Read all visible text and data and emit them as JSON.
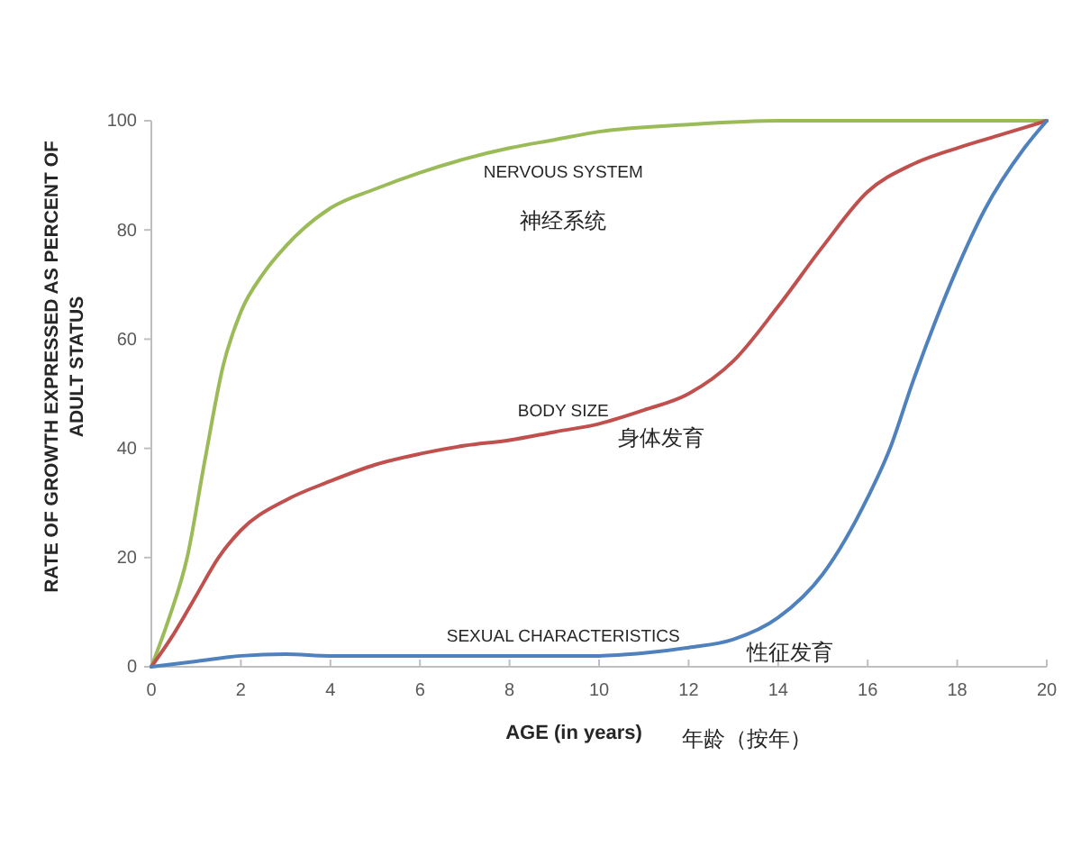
{
  "chart_data": {
    "type": "line",
    "xlabel": "AGE (in years)",
    "ylabel": "RATE OF GROWTH EXPRESSED AS PERCENT OF ADULT STATUS",
    "xlim": [
      0,
      20
    ],
    "xticks": [
      0,
      2,
      4,
      6,
      8,
      10,
      12,
      14,
      16,
      18,
      20
    ],
    "ylim": [
      0,
      100
    ],
    "yticks": [
      0,
      20,
      40,
      60,
      80,
      100
    ],
    "series": [
      {
        "name": "NERVOUS SYSTEM",
        "color": "#9bbb59",
        "x": [
          0,
          0.4,
          0.8,
          1.2,
          1.6,
          2,
          2.5,
          3,
          4,
          5,
          6,
          7,
          8,
          9,
          10,
          12,
          14,
          20
        ],
        "values": [
          0,
          9,
          20,
          38,
          55,
          65,
          72,
          77,
          84,
          87.5,
          90.5,
          93,
          95,
          96.5,
          98,
          99.3,
          100,
          100
        ]
      },
      {
        "name": "BODY SIZE",
        "color": "#c0504d",
        "x": [
          0,
          0.5,
          1,
          1.5,
          2,
          3,
          4,
          5,
          6,
          7,
          8,
          9,
          10,
          11,
          12,
          13,
          14,
          15,
          16,
          17,
          18,
          19,
          20
        ],
        "values": [
          0,
          6,
          13,
          20,
          25,
          30.5,
          34,
          37,
          39,
          40.5,
          41.5,
          43,
          44.5,
          47,
          50,
          56,
          66,
          77,
          87,
          92,
          95,
          97.5,
          100
        ]
      },
      {
        "name": "SEXUAL CHARACTERISTICS",
        "color": "#4f81bd",
        "x": [
          0,
          1,
          2,
          3,
          4,
          6,
          8,
          10,
          11,
          12,
          13,
          14,
          15,
          16,
          16.5,
          17,
          17.5,
          18,
          18.6,
          19.5,
          20
        ],
        "values": [
          0,
          1,
          2,
          2.3,
          2,
          2,
          2,
          2,
          2.5,
          3.5,
          5,
          9,
          17,
          31,
          40,
          52,
          63,
          73,
          83.5,
          95,
          100
        ]
      }
    ],
    "annotations": [
      "神经系统",
      "身体发育",
      "性征发育",
      "年龄（按年）"
    ]
  }
}
